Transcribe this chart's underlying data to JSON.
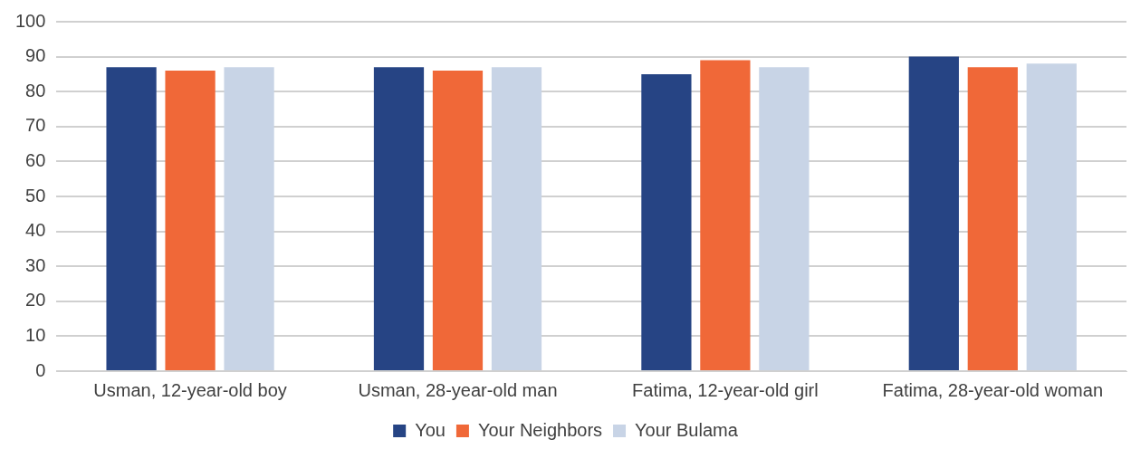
{
  "chart_data": {
    "type": "bar",
    "categories": [
      "Usman, 12-year-old boy",
      "Usman, 28-year-old man",
      "Fatima, 12-year-old girl",
      "Fatima, 28-year-old woman"
    ],
    "series": [
      {
        "name": "You",
        "color": "#264484",
        "values": [
          87,
          87,
          85,
          90
        ]
      },
      {
        "name": "Your Neighbors",
        "color": "#f06838",
        "values": [
          86,
          86,
          89,
          87
        ]
      },
      {
        "name": "Your Bulama",
        "color": "#c8d4e6",
        "values": [
          87,
          87,
          87,
          88
        ]
      }
    ],
    "ylim": [
      0,
      100
    ],
    "yticks": [
      0,
      10,
      20,
      30,
      40,
      50,
      60,
      70,
      80,
      90,
      100
    ],
    "grid": "y",
    "legend": "bottom"
  }
}
